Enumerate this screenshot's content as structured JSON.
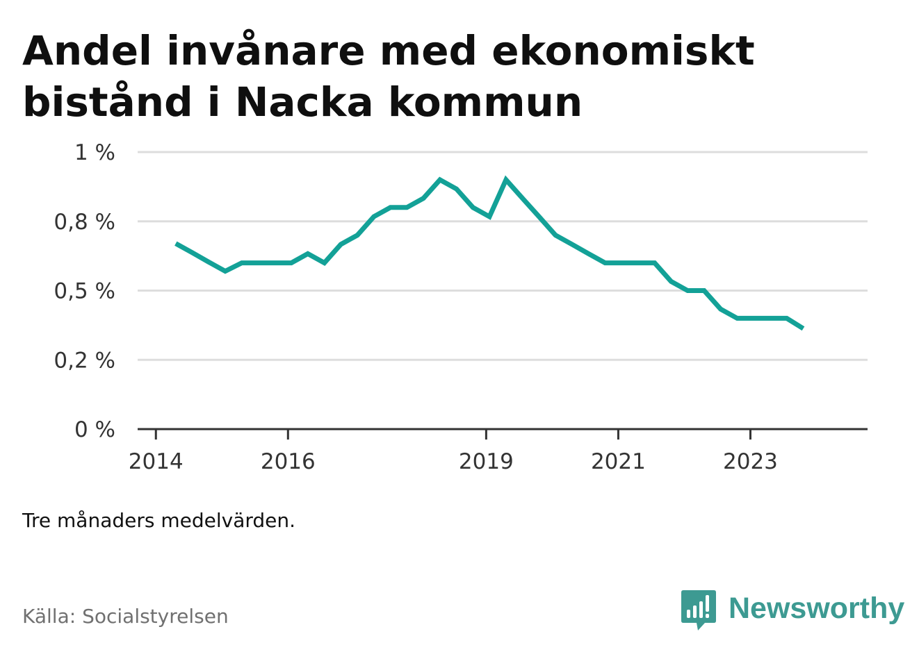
{
  "title": "Andel invånare med ekonomiskt bistånd i Nacka kommun",
  "note": "Tre månaders medelvärden.",
  "source": "Källa: Socialstyrelsen",
  "brand": {
    "name": "Newsworthy",
    "icon": "bar-chart-speech-bubble-icon",
    "color": "#3d9a92"
  },
  "colors": {
    "line": "#13a197",
    "grid": "#dddddd",
    "axis": "#333333"
  },
  "chart_data": {
    "type": "line",
    "title": "Andel invånare med ekonomiskt bistånd i Nacka kommun",
    "xlabel": "",
    "ylabel": "",
    "xlim": [
      2013.85,
      2024.5
    ],
    "ylim": [
      0,
      1
    ],
    "y_ticks": [
      {
        "value": 1.0,
        "label": "1 %"
      },
      {
        "value": 0.75,
        "label": "0,8 %"
      },
      {
        "value": 0.5,
        "label": "0,5 %"
      },
      {
        "value": 0.25,
        "label": "0,2 %"
      },
      {
        "value": 0.0,
        "label": "0 %"
      }
    ],
    "x_ticks": [
      {
        "value": 2014,
        "label": "2014"
      },
      {
        "value": 2016,
        "label": "2016"
      },
      {
        "value": 2019,
        "label": "2019"
      },
      {
        "value": 2021,
        "label": "2021"
      },
      {
        "value": 2023,
        "label": "2023"
      }
    ],
    "grid": true,
    "legend": "none",
    "series": [
      {
        "x": [
          2014.3,
          2014.55,
          2014.8,
          2015.05,
          2015.3,
          2015.55,
          2015.8,
          2016.05,
          2016.3,
          2016.55,
          2016.8,
          2017.05,
          2017.3,
          2017.55,
          2017.8,
          2018.05,
          2018.3,
          2018.55,
          2018.8,
          2019.05,
          2019.3,
          2019.55,
          2019.8,
          2020.05,
          2020.3,
          2020.55,
          2020.8,
          2021.05,
          2021.3,
          2021.55,
          2021.8,
          2022.05,
          2022.3,
          2022.55,
          2022.8,
          2023.05,
          2023.3,
          2023.55,
          2023.8
        ],
        "values": [
          0.67,
          0.637,
          0.603,
          0.57,
          0.6,
          0.6,
          0.6,
          0.6,
          0.633,
          0.6,
          0.667,
          0.7,
          0.767,
          0.8,
          0.8,
          0.833,
          0.9,
          0.867,
          0.8,
          0.767,
          0.9,
          0.833,
          0.767,
          0.7,
          0.667,
          0.633,
          0.6,
          0.6,
          0.6,
          0.6,
          0.533,
          0.5,
          0.5,
          0.433,
          0.4,
          0.4,
          0.4,
          0.4,
          0.363
        ]
      }
    ]
  }
}
